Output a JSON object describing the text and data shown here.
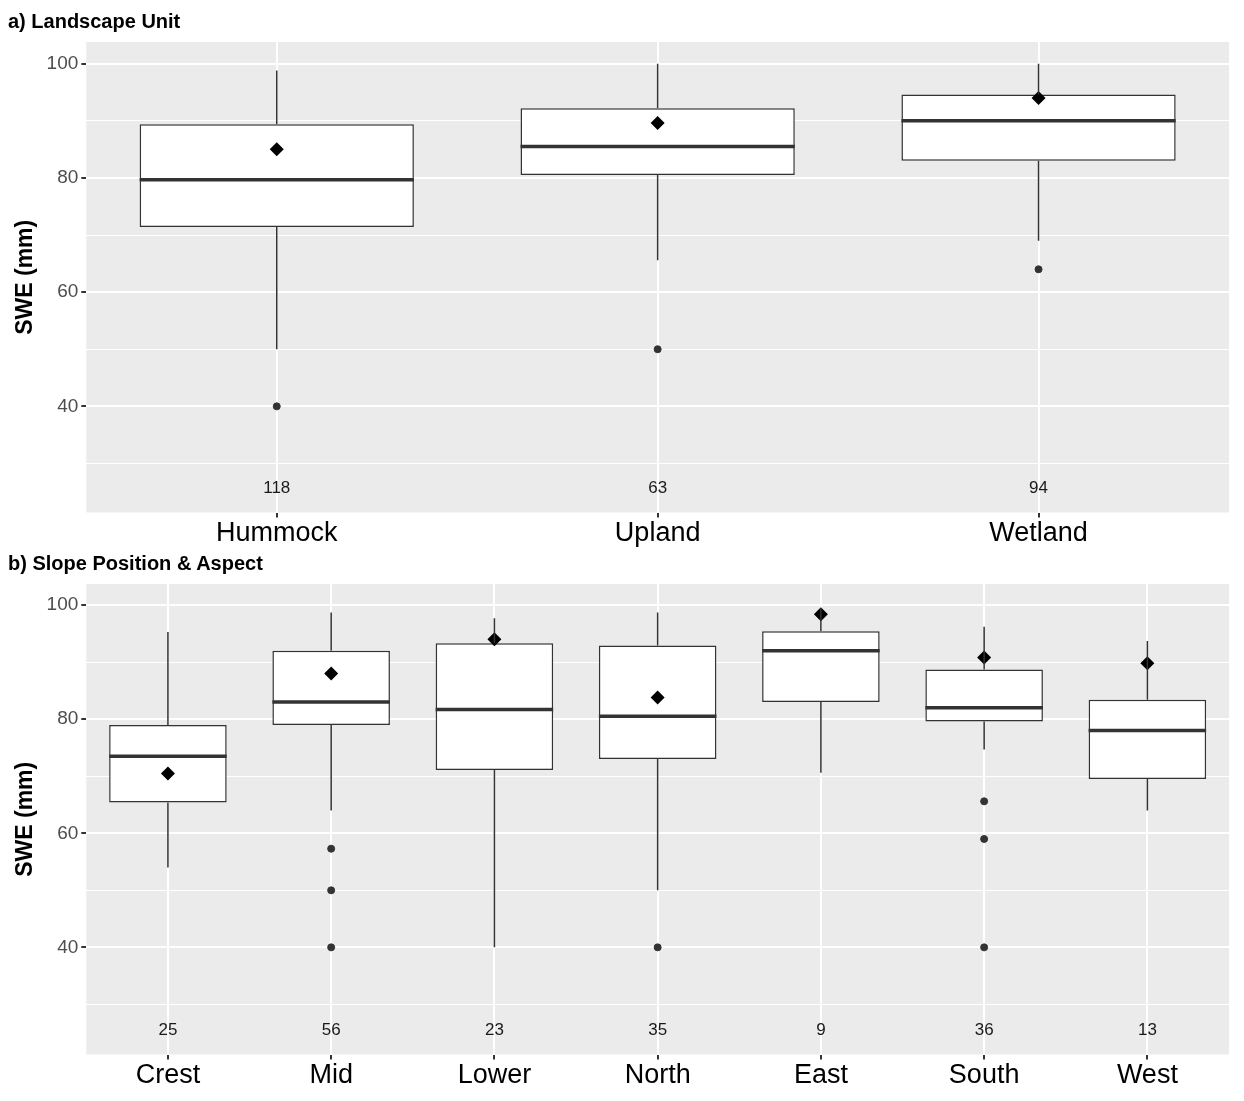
{
  "chart_data": [
    {
      "type": "box",
      "title": "a) Landscape Unit",
      "ylabel": "SWE (mm)",
      "categories": [
        "Hummock",
        "Upland",
        "Wetland"
      ],
      "boxes": [
        {
          "low": 50,
          "q1": 71.4,
          "median": 79.7,
          "q3": 89.4,
          "high": 98.8,
          "mean": 85,
          "outliers": [
            40
          ]
        },
        {
          "low": 65.6,
          "q1": 80.5,
          "median": 85.5,
          "q3": 92.2,
          "high": 100,
          "mean": 89.6,
          "outliers": [
            50
          ]
        },
        {
          "low": 69,
          "q1": 83,
          "median": 90,
          "q3": 94.6,
          "high": 100,
          "mean": 94,
          "outliers": [
            64
          ]
        }
      ],
      "ylim": [
        21.4,
        103.8
      ],
      "yticks": [
        {
          "value": 30,
          "label": null
        },
        40,
        {
          "value": 50,
          "label": null
        },
        60,
        {
          "value": 70,
          "label": null
        },
        80,
        {
          "value": 90,
          "label": null
        },
        100
      ],
      "grid": true,
      "annotations": [
        "118",
        "63",
        "94"
      ]
    },
    {
      "type": "box",
      "title": "b) Slope Position & Aspect",
      "ylabel": "SWE (mm)",
      "categories": [
        "Crest",
        "Mid",
        "Lower",
        "North",
        "East",
        "South",
        "West"
      ],
      "boxes": [
        {
          "low": 54,
          "q1": 65.4,
          "median": 73.5,
          "q3": 79,
          "high": 95.3,
          "mean": 70.5
        },
        {
          "low": 64,
          "q1": 79,
          "median": 83,
          "q3": 92,
          "high": 98.7,
          "mean": 88,
          "outliers": [
            57.3,
            50,
            40
          ]
        },
        {
          "low": 40,
          "q1": 71.1,
          "median": 81.7,
          "q3": 93.3,
          "high": 97.7,
          "mean": 94
        },
        {
          "low": 50,
          "q1": 73,
          "median": 80.5,
          "q3": 92.9,
          "high": 98.7,
          "mean": 83.8,
          "outliers": [
            40
          ]
        },
        {
          "low": 70.6,
          "q1": 83,
          "median": 92,
          "q3": 95.4,
          "high": 99.5,
          "mean": 98.4
        },
        {
          "low": 74.7,
          "q1": 79.6,
          "median": 82,
          "q3": 88.7,
          "high": 96.2,
          "mean": 90.8,
          "outliers": [
            65.6,
            59,
            40
          ]
        },
        {
          "low": 64,
          "q1": 69.5,
          "median": 78,
          "q3": 83.4,
          "high": 93.7,
          "mean": 89.8
        }
      ],
      "ylim": [
        21.2,
        103.7
      ],
      "yticks": [
        {
          "value": 30,
          "label": null
        },
        40,
        {
          "value": 50,
          "label": null
        },
        60,
        {
          "value": 70,
          "label": null
        },
        80,
        {
          "value": 90,
          "label": null
        },
        100
      ],
      "grid": true,
      "annotations": [
        "25",
        "56",
        "23",
        "35",
        "9",
        "36",
        "13"
      ]
    }
  ]
}
